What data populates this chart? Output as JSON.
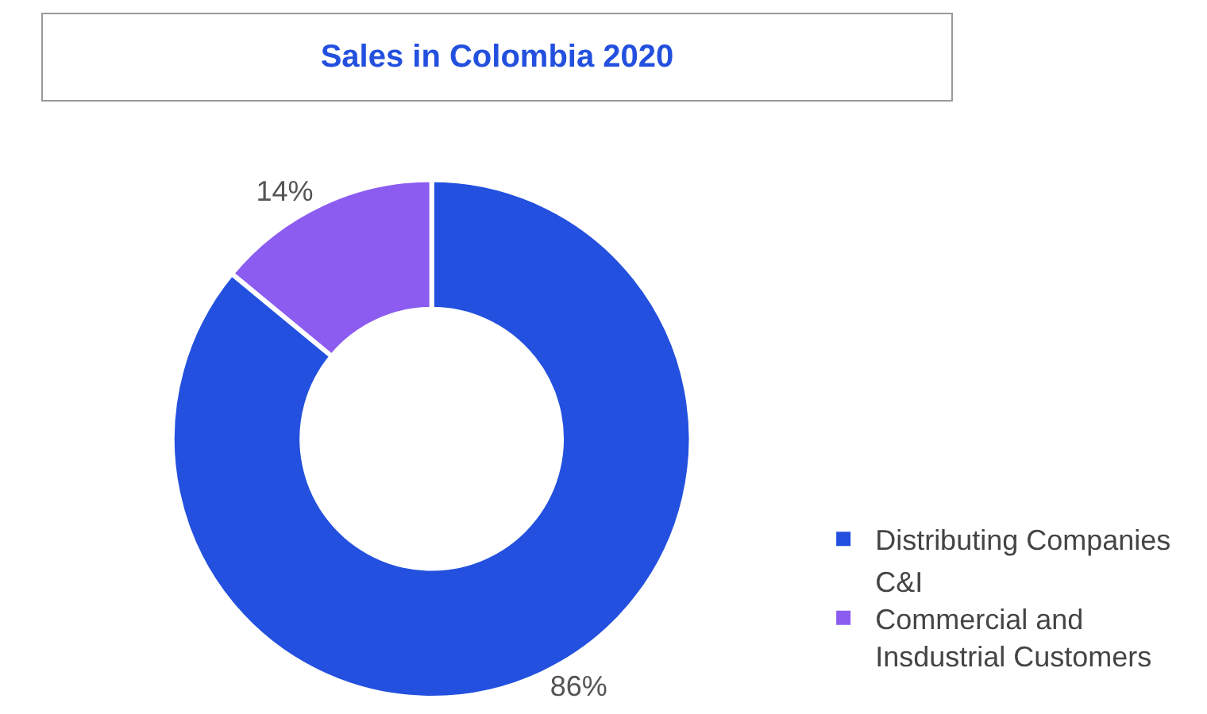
{
  "chart_data": {
    "type": "donut",
    "title": "Sales in Colombia 2020",
    "categories": [
      "Distributing Companies",
      "C&I\nCommercial and\nInsdustrial Customers"
    ],
    "values": [
      86,
      14
    ],
    "colors": [
      "#2350de",
      "#8c5cf0"
    ],
    "value_labels": [
      "86%",
      "14%"
    ],
    "legend": "bottom right"
  }
}
